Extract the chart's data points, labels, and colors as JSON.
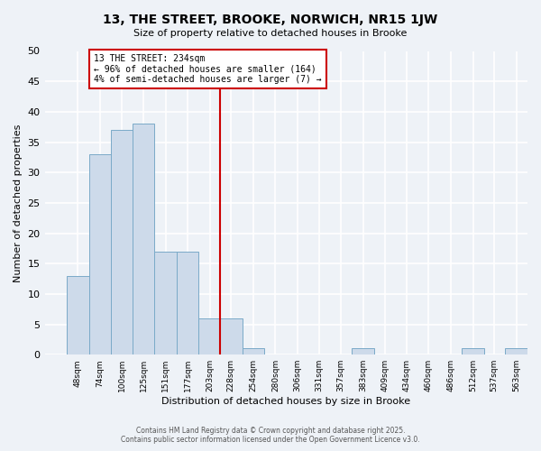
{
  "title": "13, THE STREET, BROOKE, NORWICH, NR15 1JW",
  "subtitle": "Size of property relative to detached houses in Brooke",
  "xlabel": "Distribution of detached houses by size in Brooke",
  "ylabel": "Number of detached properties",
  "bin_labels": [
    "48sqm",
    "74sqm",
    "100sqm",
    "125sqm",
    "151sqm",
    "177sqm",
    "203sqm",
    "228sqm",
    "254sqm",
    "280sqm",
    "306sqm",
    "331sqm",
    "357sqm",
    "383sqm",
    "409sqm",
    "434sqm",
    "460sqm",
    "486sqm",
    "512sqm",
    "537sqm",
    "563sqm"
  ],
  "bin_starts": [
    48,
    74,
    100,
    125,
    151,
    177,
    203,
    228,
    254,
    280,
    306,
    331,
    357,
    383,
    409,
    434,
    460,
    486,
    512,
    537,
    563
  ],
  "bin_width": 26,
  "bar_values": [
    13,
    33,
    37,
    38,
    17,
    17,
    6,
    6,
    1,
    0,
    0,
    0,
    0,
    1,
    0,
    0,
    0,
    0,
    1,
    0,
    1
  ],
  "bar_color": "#cddaea",
  "bar_edge_color": "#7aaac8",
  "property_line_x": 228,
  "property_line_color": "#cc0000",
  "annotation_title": "13 THE STREET: 234sqm",
  "annotation_line1": "← 96% of detached houses are smaller (164)",
  "annotation_line2": "4% of semi-detached houses are larger (7) →",
  "annotation_box_color": "#cc0000",
  "ylim": [
    0,
    50
  ],
  "yticks": [
    0,
    5,
    10,
    15,
    20,
    25,
    30,
    35,
    40,
    45,
    50
  ],
  "xlim_min": 22,
  "xlim_max": 589,
  "background_color": "#eef2f7",
  "grid_color": "#ffffff",
  "footer_line1": "Contains HM Land Registry data © Crown copyright and database right 2025.",
  "footer_line2": "Contains public sector information licensed under the Open Government Licence v3.0."
}
